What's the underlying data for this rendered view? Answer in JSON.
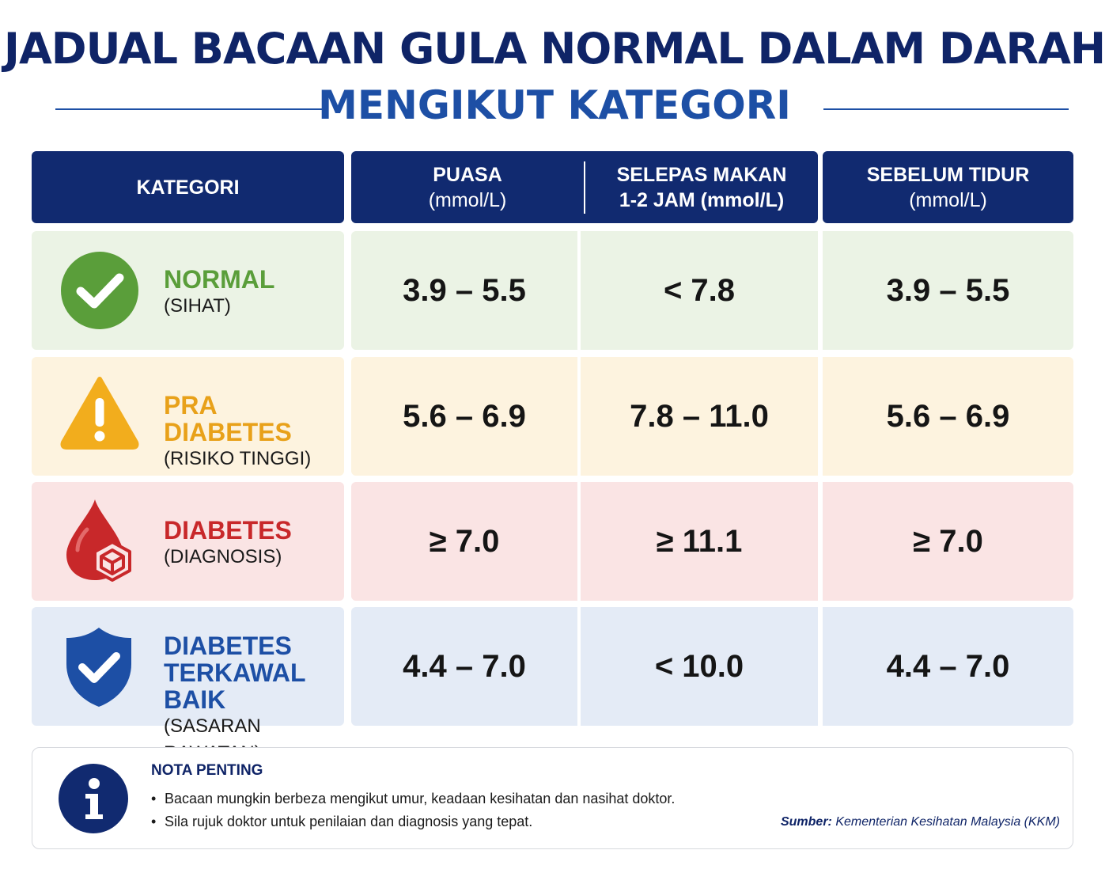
{
  "title": "JADUAL BACAAN GULA NORMAL DALAM DARAH",
  "subtitle": "MENGIKUT KATEGORI",
  "header": {
    "kategori": "KATEGORI",
    "puasa_line1": "PUASA",
    "puasa_line2": "(mmol/L)",
    "selepas_line1": "SELEPAS MAKAN",
    "selepas_line2": "1-2 JAM (mmol/L)",
    "sebelum_line1": "SEBELUM TIDUR",
    "sebelum_line2": "(mmol/L)"
  },
  "rows": [
    {
      "name_line1": "NORMAL",
      "name_line2": "",
      "sub": "(SIHAT)",
      "icon": "check-circle-icon",
      "accent": "#5a9e3a",
      "bg": "#ebf3e5",
      "puasa": "3.9 – 5.5",
      "selepas": "< 7.8",
      "sebelum": "3.9 – 5.5"
    },
    {
      "name_line1": "PRA DIABETES",
      "name_line2": "",
      "sub": "(RISIKO TINGGI)",
      "icon": "warning-icon",
      "accent": "#e8a11a",
      "bg": "#fdf3df",
      "puasa": "5.6 – 6.9",
      "selepas": "7.8 – 11.0",
      "sebelum": "5.6 – 6.9"
    },
    {
      "name_line1": "DIABETES",
      "name_line2": "",
      "sub": "(DIAGNOSIS)",
      "icon": "blood-drop-icon",
      "accent": "#c8282a",
      "bg": "#fae4e4",
      "puasa": "≥ 7.0",
      "selepas": "≥ 11.1",
      "sebelum": "≥ 7.0"
    },
    {
      "name_line1": "DIABETES",
      "name_line2": "TERKAWAL BAIK",
      "sub": "(SASARAN RAWATAN)",
      "icon": "shield-check-icon",
      "accent": "#1d4fa5",
      "bg": "#e4ebf6",
      "puasa": "4.4 – 7.0",
      "selepas": "< 10.0",
      "sebelum": "4.4 – 7.0"
    }
  ],
  "note": {
    "icon": "info-icon",
    "title": "NOTA PENTING",
    "items": [
      "Bacaan mungkin berbeza mengikut umur, keadaan kesihatan dan nasihat doktor.",
      "Sila rujuk doktor untuk penilaian dan diagnosis yang tepat."
    ],
    "source_label": "Sumber:",
    "source_text": " Kementerian Kesihatan Malaysia (KKM)"
  },
  "colors": {
    "navy": "#112a70",
    "title": "#0f2467",
    "subtitle": "#1d4fa5"
  }
}
